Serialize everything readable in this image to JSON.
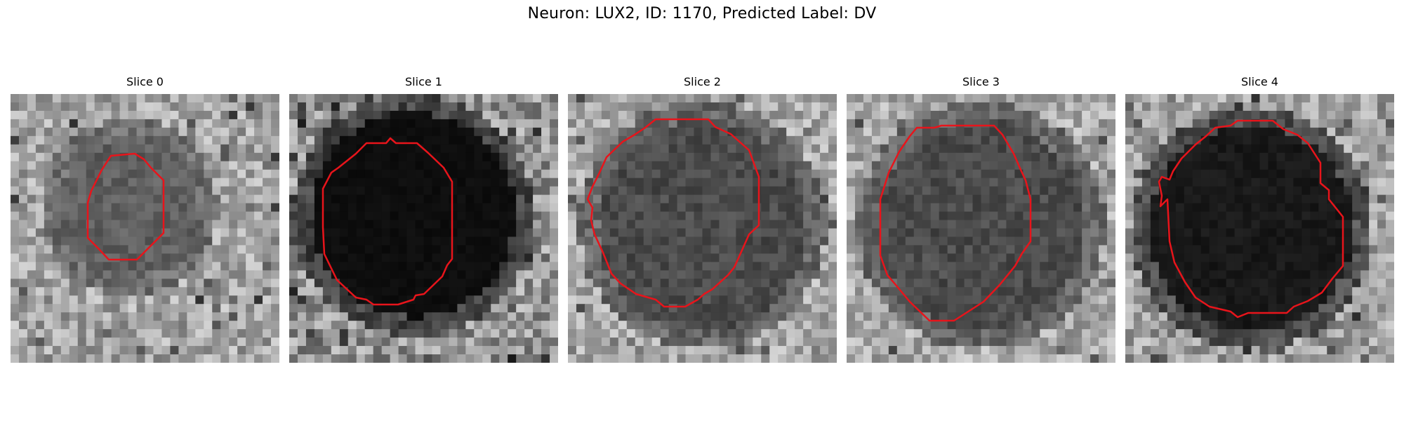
{
  "figure": {
    "title": "Neuron: LUX2, ID: 1170, Predicted Label: DV"
  },
  "panels": [
    {
      "title": "Slice 0",
      "interior_tone": "dark-gray",
      "seed": 11
    },
    {
      "title": "Slice 1",
      "interior_tone": "black",
      "seed": 23
    },
    {
      "title": "Slice 2",
      "interior_tone": "textured-dark",
      "seed": 37
    },
    {
      "title": "Slice 3",
      "interior_tone": "textured-dark",
      "seed": 53
    },
    {
      "title": "Slice 4",
      "interior_tone": "near-black",
      "seed": 71
    }
  ],
  "colors": {
    "contour": "#e8141b",
    "background": "#ffffff"
  }
}
